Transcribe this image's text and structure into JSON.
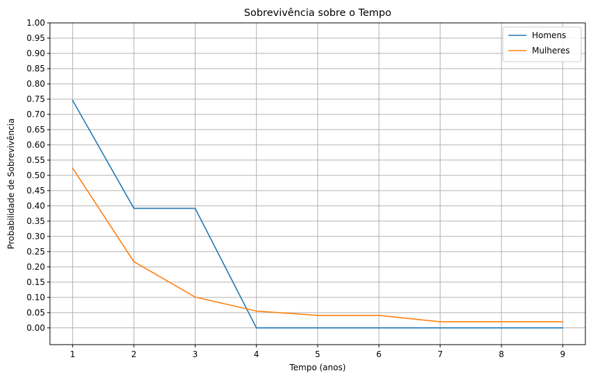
{
  "chart_data": {
    "type": "line",
    "title": "Sobrevivência sobre o Tempo",
    "xlabel": "Tempo (anos)",
    "ylabel": "Probabilidade de Sobrevivência",
    "x": [
      1,
      2,
      3,
      4,
      5,
      6,
      7,
      8,
      9
    ],
    "xticks": [
      "1",
      "2",
      "3",
      "4",
      "5",
      "6",
      "7",
      "8",
      "9"
    ],
    "yticks": [
      "0.00",
      "0.05",
      "0.10",
      "0.15",
      "0.20",
      "0.25",
      "0.30",
      "0.35",
      "0.40",
      "0.45",
      "0.50",
      "0.55",
      "0.60",
      "0.65",
      "0.70",
      "0.75",
      "0.80",
      "0.85",
      "0.90",
      "0.95",
      "1.00"
    ],
    "xlim": [
      0.63,
      9.37
    ],
    "ylim": [
      -0.055,
      1.0
    ],
    "grid": true,
    "legend_position": "top-right",
    "series": [
      {
        "name": "Homens",
        "color": "#1f77b4",
        "values": [
          0.746,
          0.392,
          0.392,
          0.0,
          0.0,
          0.0,
          0.0,
          0.0,
          0.0
        ]
      },
      {
        "name": "Mulheres",
        "color": "#ff7f0e",
        "values": [
          0.524,
          0.217,
          0.101,
          0.055,
          0.041,
          0.041,
          0.02,
          0.02,
          0.02
        ]
      }
    ]
  }
}
